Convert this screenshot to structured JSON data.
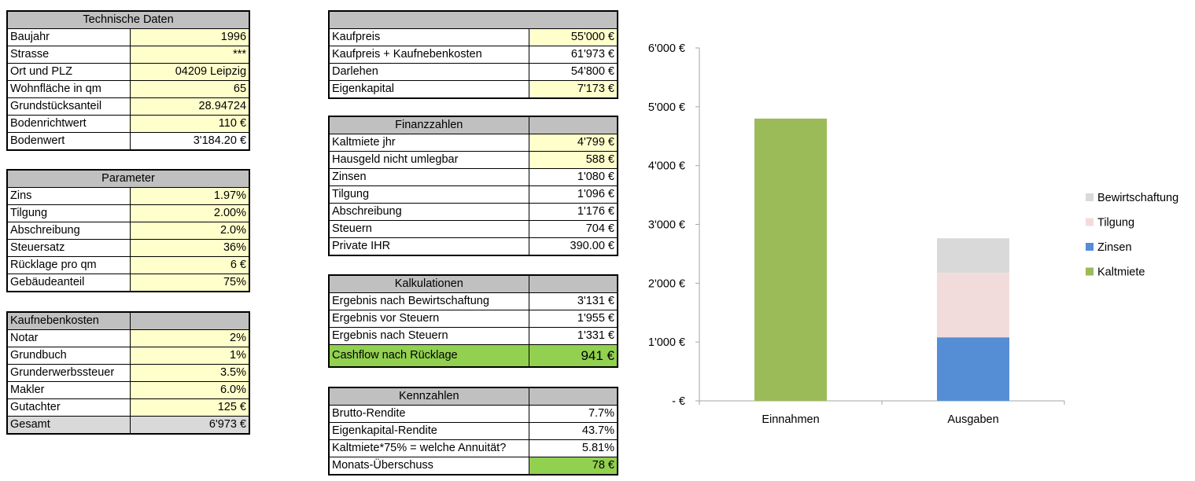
{
  "technische_daten": {
    "title": "Technische Daten",
    "rows": [
      {
        "label": "Baujahr",
        "value": "1996"
      },
      {
        "label": "Strasse",
        "value": "***"
      },
      {
        "label": "Ort und PLZ",
        "value": "04209 Leipzig"
      },
      {
        "label": "Wohnfläche in qm",
        "value": "65"
      },
      {
        "label": "Grundstücksanteil",
        "value": "28.94724"
      },
      {
        "label": "Bodenrichtwert",
        "value": "110 €"
      },
      {
        "label": "Bodenwert",
        "value": "3'184.20 €"
      }
    ]
  },
  "parameter": {
    "title": "Parameter",
    "rows": [
      {
        "label": "Zins",
        "value": "1.97%"
      },
      {
        "label": "Tilgung",
        "value": "2.00%"
      },
      {
        "label": "Abschreibung",
        "value": "2.0%"
      },
      {
        "label": "Steuersatz",
        "value": "36%"
      },
      {
        "label": "Rücklage pro qm",
        "value": "6 €"
      },
      {
        "label": "Gebäudeanteil",
        "value": "75%"
      }
    ]
  },
  "kaufnebenkosten": {
    "title": "Kaufnebenkosten",
    "rows": [
      {
        "label": "Notar",
        "value": "2%"
      },
      {
        "label": "Grundbuch",
        "value": "1%"
      },
      {
        "label": "Grunderwerbssteuer",
        "value": "3.5%"
      },
      {
        "label": "Makler",
        "value": "6.0%"
      },
      {
        "label": "Gutachter",
        "value": "125 €"
      }
    ],
    "total": {
      "label": "Gesamt",
      "value": "6'973 €"
    }
  },
  "kaufpreis": {
    "rows": [
      {
        "label": "Kaufpreis",
        "value": "55'000 €"
      },
      {
        "label": "Kaufpreis + Kaufnebenkosten",
        "value": "61'973 €"
      },
      {
        "label": "Darlehen",
        "value": "54'800 €"
      },
      {
        "label": "Eigenkapital",
        "value": "7'173 €"
      }
    ]
  },
  "finanzzahlen": {
    "title": "Finanzzahlen",
    "rows": [
      {
        "label": "Kaltmiete jhr",
        "value": "4'799 €"
      },
      {
        "label": "Hausgeld nicht umlegbar",
        "value": "588 €"
      },
      {
        "label": "Zinsen",
        "value": "1'080 €"
      },
      {
        "label": "Tilgung",
        "value": "1'096 €"
      },
      {
        "label": "Abschreibung",
        "value": "1'176 €"
      },
      {
        "label": "Steuern",
        "value": "704 €"
      },
      {
        "label": "Private IHR",
        "value": "390.00 €"
      }
    ]
  },
  "kalkulationen": {
    "title": "Kalkulationen",
    "rows": [
      {
        "label": "Ergebnis nach Bewirtschaftung",
        "value": "3'131 €"
      },
      {
        "label": "Ergebnis vor Steuern",
        "value": "1'955 €"
      },
      {
        "label": "Ergebnis nach Steuern",
        "value": "1'331 €"
      },
      {
        "label": "Cashflow nach Rücklage",
        "value": "941 €"
      }
    ]
  },
  "kennzahlen": {
    "title": "Kennzahlen",
    "rows": [
      {
        "label": "Brutto-Rendite",
        "value": "7.7%"
      },
      {
        "label": "Eigenkapital-Rendite",
        "value": "43.7%"
      },
      {
        "label": "Kaltmiete*75% = welche Annuität?",
        "value": "5.81%"
      },
      {
        "label": "Monats-Überschuss",
        "value": "78 €"
      }
    ]
  },
  "colors": {
    "input_yellow": "#ffffcc",
    "header_gray": "#c0c0c0",
    "highlight_green": "#92d050",
    "kaltmiete": "#9bbb59",
    "zinsen": "#558ed5",
    "tilgung": "#f2dcdb",
    "bewirtschaftung": "#d9d9d9"
  },
  "chart_data": {
    "type": "bar",
    "stacked": true,
    "categories": [
      "Einnahmen",
      "Ausgaben"
    ],
    "series": [
      {
        "name": "Kaltmiete",
        "values": [
          4799,
          0
        ],
        "color": "#9bbb59"
      },
      {
        "name": "Zinsen",
        "values": [
          0,
          1080
        ],
        "color": "#558ed5"
      },
      {
        "name": "Tilgung",
        "values": [
          0,
          1096
        ],
        "color": "#f2dcdb"
      },
      {
        "name": "Bewirtschaftung",
        "values": [
          0,
          588
        ],
        "color": "#d9d9d9"
      }
    ],
    "legend_order": [
      "Bewirtschaftung",
      "Tilgung",
      "Zinsen",
      "Kaltmiete"
    ],
    "yticks": [
      0,
      1000,
      2000,
      3000,
      4000,
      5000,
      6000
    ],
    "ytick_labels": [
      "-  €",
      "1'000 €",
      "2'000 €",
      "3'000 €",
      "4'000 €",
      "5'000 €",
      "6'000 €"
    ],
    "ylim": [
      0,
      6000
    ],
    "legend_position": "right",
    "grid": false,
    "title": "",
    "xlabel": "",
    "ylabel": ""
  }
}
